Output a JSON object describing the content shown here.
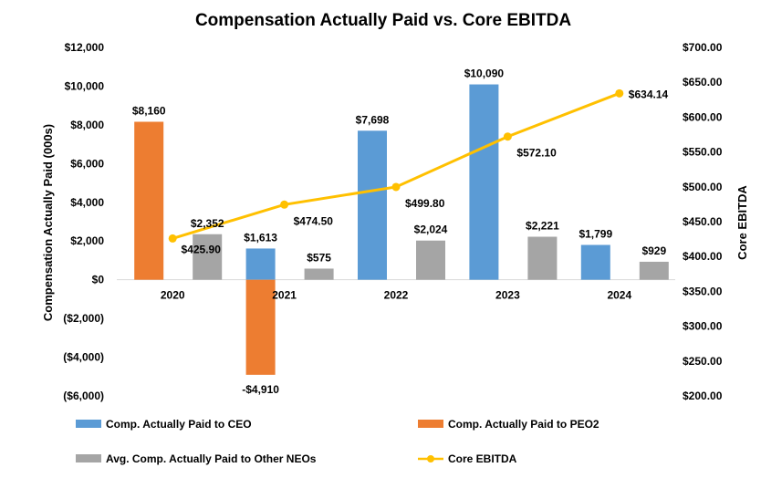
{
  "chart_data": {
    "type": "bar",
    "title": "Compensation Actually Paid vs. Core EBITDA",
    "categories": [
      "2020",
      "2021",
      "2022",
      "2023",
      "2024"
    ],
    "ylabel": "Compensation Actually Paid (000s)",
    "y2label": "Core EBITDA",
    "ylim": [
      -6000,
      12000
    ],
    "y2lim": [
      200,
      700
    ],
    "y_ticks": [
      "$12,000",
      "$10,000",
      "$8,000",
      "$6,000",
      "$4,000",
      "$2,000",
      "$0",
      "($2,000)",
      "($4,000)",
      "($6,000)"
    ],
    "y2_ticks": [
      "$700.00",
      "$650.00",
      "$600.00",
      "$550.00",
      "$500.00",
      "$450.00",
      "$400.00",
      "$350.00",
      "$300.00",
      "$250.00",
      "$200.00"
    ],
    "series": [
      {
        "name": "Comp. Actually Paid to CEO",
        "type": "bar",
        "color": "#5B9BD5",
        "values": [
          null,
          1613,
          7698,
          10090,
          1799
        ],
        "labels": [
          "",
          "$1,613",
          "$7,698",
          "$10,090",
          "$1,799"
        ]
      },
      {
        "name": "Comp. Actually Paid to PEO2",
        "type": "bar",
        "color": "#ED7D31",
        "values": [
          8160,
          -4910,
          null,
          null,
          null
        ],
        "labels": [
          "$8,160",
          "-$4,910",
          "",
          "",
          ""
        ]
      },
      {
        "name": "Avg. Comp. Actually Paid to Other NEOs",
        "type": "bar",
        "color": "#A5A5A5",
        "values": [
          2352,
          575,
          2024,
          2221,
          929
        ],
        "labels": [
          "$2,352",
          "$575",
          "$2,024",
          "$2,221",
          "$929"
        ]
      },
      {
        "name": "Core EBITDA",
        "type": "line",
        "axis": "secondary",
        "color": "#FFC000",
        "values": [
          425.9,
          474.5,
          499.8,
          572.1,
          634.14
        ],
        "labels": [
          "$425.90",
          "$474.50",
          "$499.80",
          "$572.10",
          "$634.14"
        ]
      }
    ],
    "legend": "bottom"
  }
}
